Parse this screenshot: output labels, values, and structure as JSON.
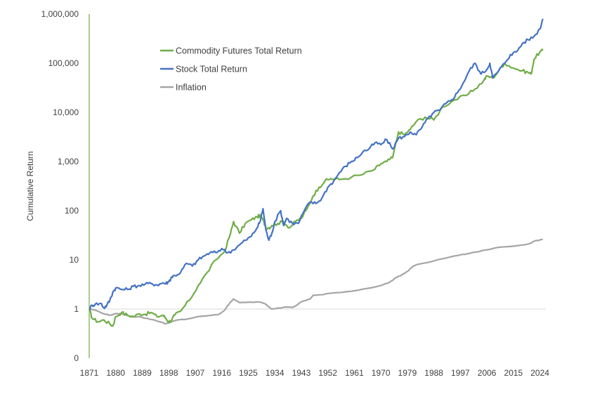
{
  "chart_data": {
    "type": "line",
    "title": "",
    "xlabel": "",
    "ylabel": "Cumulative Return",
    "y_scale": "log",
    "xlim": [
      1871,
      2026
    ],
    "x_tick_labels": [
      "1871",
      "1880",
      "1889",
      "1898",
      "1907",
      "1916",
      "1925",
      "1934",
      "1943",
      "1952",
      "1961",
      "1970",
      "1979",
      "1988",
      "1997",
      "2006",
      "2015",
      "2024"
    ],
    "y_tick_labels": [
      "0",
      "1",
      "10",
      "100",
      "1,000",
      "10,000",
      "100,000",
      "1,000,000"
    ],
    "y_tick_values": [
      0.1,
      1,
      10,
      100,
      1000,
      10000,
      100000,
      1000000
    ],
    "reference_line": 1,
    "legend_position": "top-left",
    "colors": {
      "commodity": "#70AD47",
      "stock": "#4472C4",
      "inflation": "#A5A5A5",
      "axis": "#70AD47",
      "refline": "#D9D9D9"
    },
    "series": [
      {
        "name": "Commodity Futures Total Return",
        "color": "#70AD47",
        "x": [
          1871,
          1872,
          1874,
          1876,
          1878,
          1879,
          1880,
          1882,
          1884,
          1886,
          1888,
          1890,
          1892,
          1894,
          1896,
          1897,
          1898,
          1899,
          1900,
          1902,
          1905,
          1908,
          1911,
          1914,
          1917,
          1919,
          1920,
          1922,
          1924,
          1926,
          1928,
          1929,
          1930,
          1931,
          1932,
          1933,
          1935,
          1937,
          1939,
          1941,
          1943,
          1945,
          1947,
          1949,
          1951,
          1953,
          1956,
          1960,
          1964,
          1968,
          1970,
          1972,
          1974,
          1976,
          1978,
          1980,
          1982,
          1985,
          1988,
          1991,
          1995,
          1999,
          2002,
          2005,
          2006,
          2008,
          2010,
          2012,
          2015,
          2018,
          2020,
          2021,
          2022,
          2024,
          2025
        ],
        "values": [
          1.0,
          0.65,
          0.55,
          0.6,
          0.5,
          0.45,
          0.7,
          0.85,
          0.75,
          0.7,
          0.8,
          0.78,
          0.85,
          0.7,
          0.75,
          0.65,
          0.55,
          0.6,
          0.75,
          0.9,
          1.5,
          3,
          5.5,
          10,
          15,
          35,
          60,
          35,
          55,
          65,
          75,
          80,
          65,
          45,
          45,
          50,
          55,
          60,
          45,
          60,
          70,
          110,
          200,
          300,
          400,
          450,
          430,
          480,
          550,
          700,
          900,
          1000,
          1200,
          4000,
          3500,
          4500,
          6500,
          8000,
          7000,
          13000,
          18000,
          22000,
          30000,
          45000,
          55000,
          50000,
          70000,
          100000,
          80000,
          70000,
          65000,
          60000,
          120000,
          170000,
          180000
        ]
      },
      {
        "name": "Stock Total Return",
        "color": "#4472C4",
        "x": [
          1871,
          1872,
          1873,
          1875,
          1876,
          1877,
          1878,
          1879,
          1880,
          1882,
          1884,
          1886,
          1888,
          1890,
          1892,
          1894,
          1896,
          1897,
          1898,
          1899,
          1900,
          1902,
          1904,
          1906,
          1908,
          1910,
          1912,
          1914,
          1916,
          1918,
          1920,
          1922,
          1924,
          1926,
          1928,
          1929,
          1930,
          1931,
          1932,
          1933,
          1934,
          1936,
          1937,
          1938,
          1940,
          1942,
          1944,
          1946,
          1948,
          1950,
          1952,
          1954,
          1956,
          1958,
          1960,
          1962,
          1964,
          1966,
          1968,
          1970,
          1972,
          1974,
          1976,
          1978,
          1980,
          1982,
          1984,
          1986,
          1988,
          1990,
          1992,
          1994,
          1996,
          1998,
          2000,
          2002,
          2004,
          2006,
          2007,
          2008,
          2010,
          2012,
          2014,
          2016,
          2018,
          2020,
          2022,
          2024,
          2025
        ],
        "values": [
          1.0,
          1.2,
          1.25,
          1.3,
          1.05,
          1.2,
          1.5,
          2.2,
          2.7,
          2.5,
          2.5,
          2.9,
          3.0,
          3.2,
          3.3,
          3.1,
          3.4,
          3.3,
          3.6,
          4.5,
          4.8,
          5.5,
          8.5,
          7.5,
          10,
          12,
          14,
          14,
          17,
          14,
          16,
          20,
          25,
          30,
          45,
          60,
          110,
          40,
          25,
          35,
          60,
          100,
          50,
          70,
          55,
          55,
          100,
          150,
          140,
          180,
          300,
          400,
          600,
          800,
          1000,
          1200,
          1600,
          1800,
          2400,
          2200,
          2800,
          1800,
          3000,
          3200,
          4000,
          3500,
          5000,
          7500,
          10000,
          11000,
          15000,
          18000,
          25000,
          40000,
          70000,
          100000,
          60000,
          75000,
          100000,
          50000,
          70000,
          100000,
          150000,
          170000,
          250000,
          300000,
          350000,
          500000,
          800000
        ]
      },
      {
        "name": "Inflation",
        "color": "#A5A5A5",
        "x": [
          1871,
          1873,
          1876,
          1878,
          1880,
          1882,
          1885,
          1888,
          1890,
          1893,
          1895,
          1897,
          1899,
          1901,
          1904,
          1907,
          1910,
          1913,
          1915,
          1917,
          1919,
          1920,
          1922,
          1926,
          1929,
          1931,
          1932,
          1933,
          1935,
          1938,
          1940,
          1941,
          1943,
          1946,
          1947,
          1950,
          1953,
          1960,
          1965,
          1970,
          1973,
          1975,
          1977,
          1979,
          1981,
          1983,
          1988,
          1995,
          2000,
          2006,
          2010,
          2015,
          2020,
          2021,
          2022,
          2025
        ],
        "values": [
          1.0,
          0.95,
          0.8,
          0.75,
          0.8,
          0.8,
          0.7,
          0.7,
          0.65,
          0.6,
          0.55,
          0.5,
          0.55,
          0.6,
          0.62,
          0.68,
          0.72,
          0.75,
          0.78,
          0.95,
          1.4,
          1.6,
          1.35,
          1.38,
          1.38,
          1.25,
          1.1,
          1.0,
          1.05,
          1.1,
          1.08,
          1.15,
          1.4,
          1.6,
          1.9,
          1.95,
          2.1,
          2.3,
          2.6,
          3.0,
          3.5,
          4.3,
          4.9,
          5.8,
          7.5,
          8.2,
          9.5,
          12,
          13.5,
          16,
          18,
          19,
          21,
          22,
          24,
          26
        ]
      }
    ]
  }
}
